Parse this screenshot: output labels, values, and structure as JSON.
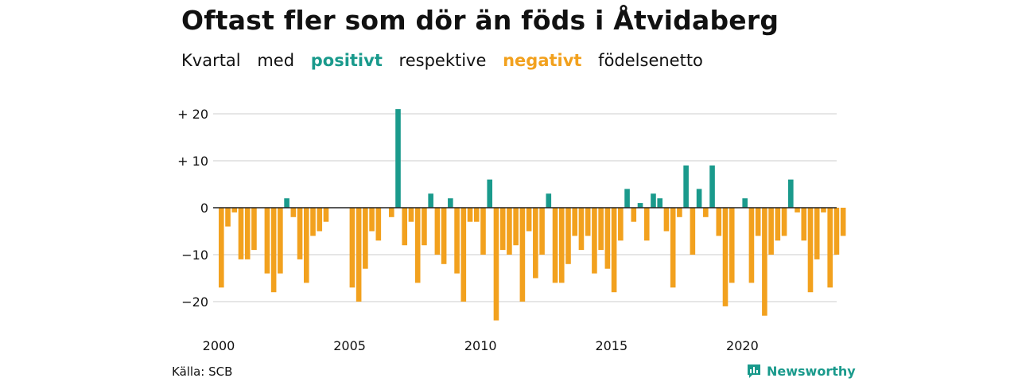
{
  "title": "Oftast fler som dör än föds i Åtvidaberg",
  "subtitle": {
    "w1": "Kvartal",
    "w2": "med",
    "positive_word": "positivt",
    "w3": "respektive",
    "negative_word": "negativt",
    "w4": "födelsenetto"
  },
  "source": "Källa: SCB",
  "brand": "Newsworthy",
  "colors": {
    "positive": "#1a9a8c",
    "negative": "#f2a11e",
    "grid": "#dddddd",
    "axis": "#222222"
  },
  "chart_data": {
    "type": "bar",
    "title": "Oftast fler som dör än föds i Åtvidaberg",
    "xlabel": "",
    "ylabel": "",
    "ylim": [
      -25,
      22
    ],
    "y_ticks": [
      {
        "value": 20,
        "label": "+ 20"
      },
      {
        "value": 10,
        "label": "+ 10"
      },
      {
        "value": 0,
        "label": "0"
      },
      {
        "value": -10,
        "label": "−10"
      },
      {
        "value": -20,
        "label": "−20"
      }
    ],
    "x_ticks": [
      "2000",
      "2005",
      "2010",
      "2015",
      "2020"
    ],
    "start_year": 2000,
    "values": [
      -17,
      -4,
      -1,
      -11,
      -11,
      -9,
      0,
      -14,
      -18,
      -14,
      2,
      -2,
      -11,
      -16,
      -6,
      -5,
      -3,
      0,
      0,
      0,
      -17,
      -20,
      -13,
      -5,
      -7,
      0,
      -2,
      21,
      -8,
      -3,
      -16,
      -8,
      3,
      -10,
      -12,
      2,
      -14,
      -20,
      -3,
      -3,
      -10,
      6,
      -24,
      -9,
      -10,
      -8,
      -20,
      -5,
      -15,
      -10,
      3,
      -16,
      -16,
      -12,
      -6,
      -9,
      -6,
      -14,
      -9,
      -13,
      -18,
      -7,
      4,
      -3,
      1,
      -7,
      3,
      2,
      -5,
      -17,
      -2,
      9,
      -10,
      4,
      -2,
      9,
      -6,
      -21,
      -16,
      0,
      2,
      -16,
      -6,
      -23,
      -10,
      -7,
      -6,
      6,
      -1,
      -7,
      -18,
      -11,
      -1,
      -17,
      -10,
      -6
    ],
    "grid": true,
    "legend": "none"
  }
}
